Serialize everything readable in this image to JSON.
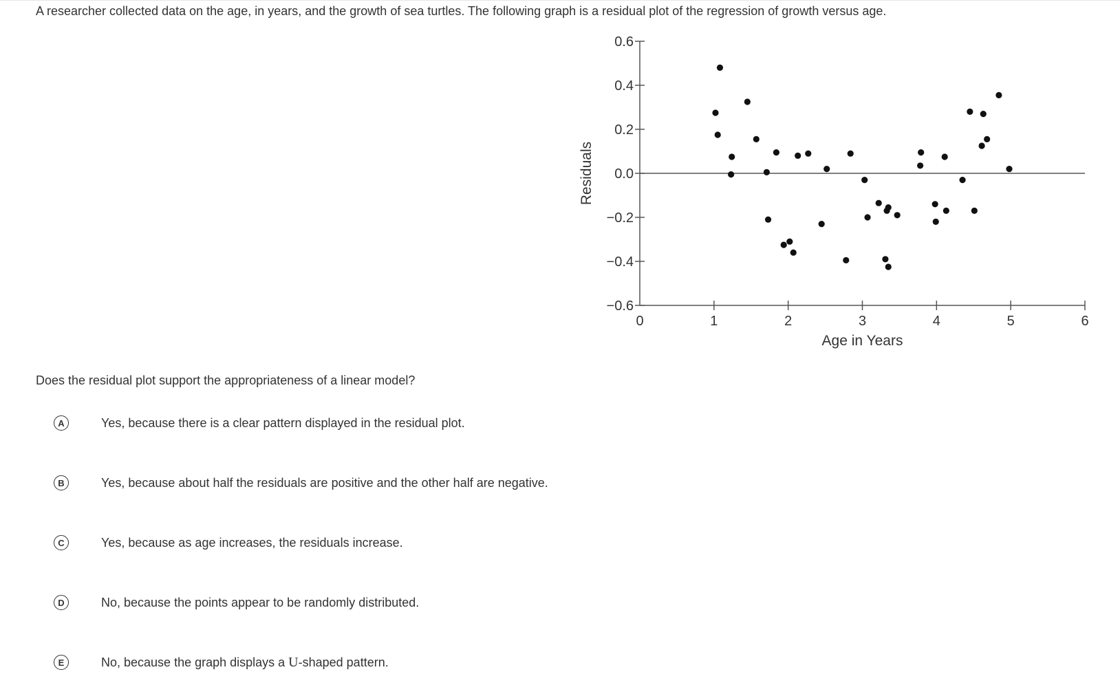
{
  "intro_text": "A researcher collected data on the age, in years, and the growth of sea turtles. The following graph is a residual plot of the regression of growth versus age.",
  "question_text": "Does the residual plot support the appropriateness of a linear model?",
  "choices": [
    {
      "letter": "A",
      "text": "Yes, because there is a clear pattern displayed in the residual plot."
    },
    {
      "letter": "B",
      "text": "Yes, because about half the residuals are positive and the other half are negative."
    },
    {
      "letter": "C",
      "text": "Yes, because as age increases, the residuals increase."
    },
    {
      "letter": "D",
      "text": "No, because the points appear to be randomly distributed."
    },
    {
      "letter": "E",
      "text_before": "No, because the graph displays a ",
      "text_u": "U",
      "text_after": "-shaped pattern."
    }
  ],
  "chart_data": {
    "type": "scatter",
    "xlabel": "Age in Years",
    "ylabel": "Residuals",
    "xlim": [
      0,
      6
    ],
    "ylim": [
      -0.6,
      0.6
    ],
    "x_ticks": [
      0,
      1,
      2,
      3,
      4,
      5,
      6
    ],
    "x_tick_labels": [
      "0",
      "1",
      "2",
      "3",
      "4",
      "5",
      "6"
    ],
    "y_ticks": [
      0.6,
      0.4,
      0.2,
      0.0,
      -0.2,
      -0.4,
      -0.6
    ],
    "y_tick_labels": [
      "0.6",
      "0.4",
      "0.2",
      "0.0",
      "−0.2",
      "−0.4",
      "−0.6"
    ],
    "reference_line_y": 0,
    "grid": false,
    "points": [
      [
        1.08,
        0.48
      ],
      [
        1.02,
        0.275
      ],
      [
        1.05,
        0.175
      ],
      [
        1.24,
        0.075
      ],
      [
        1.23,
        -0.005
      ],
      [
        1.45,
        0.325
      ],
      [
        1.57,
        0.155
      ],
      [
        1.71,
        0.005
      ],
      [
        1.73,
        -0.21
      ],
      [
        1.84,
        0.095
      ],
      [
        1.94,
        -0.325
      ],
      [
        2.02,
        -0.31
      ],
      [
        2.07,
        -0.36
      ],
      [
        2.13,
        0.08
      ],
      [
        2.27,
        0.09
      ],
      [
        2.45,
        -0.23
      ],
      [
        2.52,
        0.02
      ],
      [
        2.78,
        -0.395
      ],
      [
        2.84,
        0.09
      ],
      [
        3.03,
        -0.03
      ],
      [
        3.07,
        -0.2
      ],
      [
        3.22,
        -0.135
      ],
      [
        3.31,
        -0.39
      ],
      [
        3.33,
        -0.17
      ],
      [
        3.35,
        -0.155
      ],
      [
        3.35,
        -0.425
      ],
      [
        3.47,
        -0.19
      ],
      [
        3.78,
        0.035
      ],
      [
        3.79,
        0.095
      ],
      [
        3.98,
        -0.14
      ],
      [
        3.99,
        -0.22
      ],
      [
        4.11,
        0.075
      ],
      [
        4.13,
        -0.17
      ],
      [
        4.35,
        -0.03
      ],
      [
        4.45,
        0.28
      ],
      [
        4.51,
        -0.17
      ],
      [
        4.61,
        0.125
      ],
      [
        4.63,
        0.27
      ],
      [
        4.68,
        0.155
      ],
      [
        4.84,
        0.355
      ],
      [
        4.98,
        0.02
      ]
    ]
  }
}
